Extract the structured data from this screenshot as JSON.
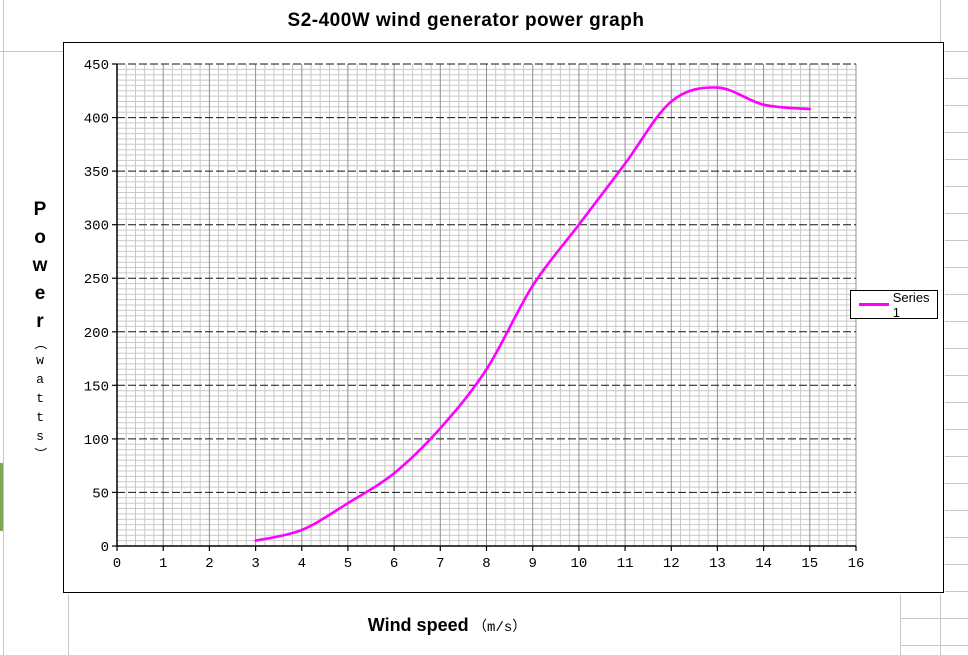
{
  "chart_data": {
    "type": "line",
    "title": "S2-400W wind generator power graph",
    "xlabel": "Wind speed",
    "xlabel_unit": "（m/s）",
    "ylabel": "Power",
    "ylabel_unit": "（watts）",
    "xlim": [
      0,
      16
    ],
    "ylim": [
      0,
      450
    ],
    "x_tick_step": 1,
    "y_tick_step": 50,
    "x_minor_step": 0.2,
    "y_minor_step": 5,
    "grid": "on",
    "legend_position": "right",
    "series": [
      {
        "name": "Series 1",
        "color": "#ff00ff",
        "x": [
          3,
          4,
          5,
          6,
          7,
          8,
          9,
          10,
          11,
          12,
          13,
          14,
          15
        ],
        "y": [
          5,
          15,
          40,
          68,
          110,
          165,
          243,
          300,
          357,
          415,
          428,
          412,
          408
        ]
      }
    ],
    "colors": {
      "minor_grid": "#c9c9c9",
      "major_vertical_grid": "#8f8f8f",
      "major_horizontal_grid": "#141414",
      "axis": "#000000"
    }
  },
  "spreadsheet": {
    "gridline_color": "#c6c6c6",
    "green_marker_color": "#7fa653"
  }
}
